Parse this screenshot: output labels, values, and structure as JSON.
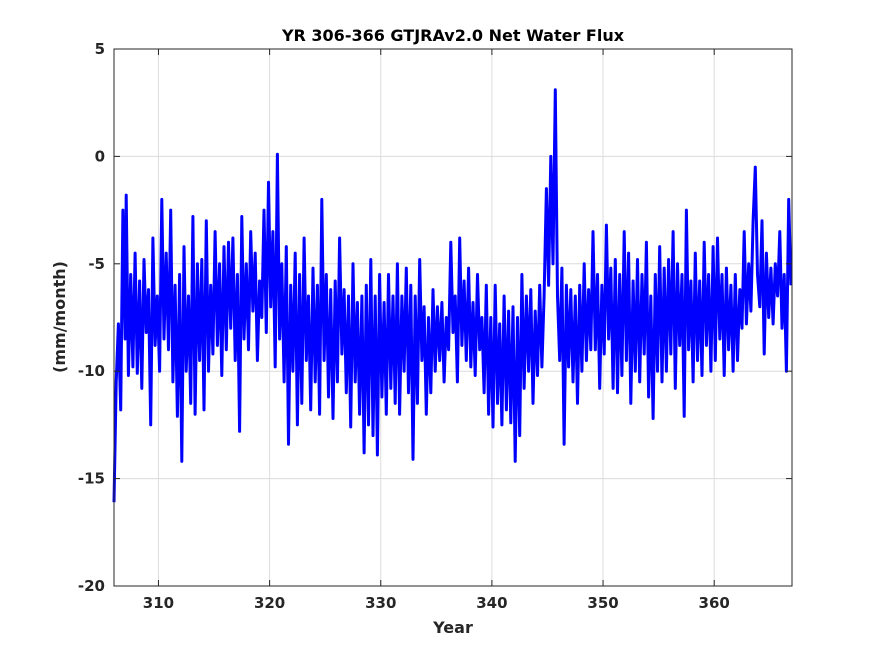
{
  "chart_data": {
    "type": "line",
    "title": "YR 306-366 GTJRAv2.0 Net Water Flux",
    "xlabel": "Year",
    "ylabel": "(mm/month)",
    "xlim": [
      306,
      367
    ],
    "ylim": [
      -20,
      5
    ],
    "xticks": [
      310,
      320,
      330,
      340,
      350,
      360
    ],
    "xtick_labels": [
      "310",
      "320",
      "330",
      "340",
      "350",
      "360"
    ],
    "yticks": [
      5,
      0,
      -5,
      -10,
      -15,
      -20
    ],
    "ytick_labels": [
      "5",
      "0",
      "-5",
      "-10",
      "-15",
      "-20"
    ],
    "grid": true,
    "line_color": "#0000ff",
    "series": [
      {
        "name": "",
        "points": [
          [
            306.0,
            -16.1
          ],
          [
            306.2,
            -10.5
          ],
          [
            306.4,
            -7.8
          ],
          [
            306.6,
            -11.8
          ],
          [
            306.8,
            -2.5
          ],
          [
            307.0,
            -8.5
          ],
          [
            307.1,
            -1.8
          ],
          [
            307.3,
            -10.2
          ],
          [
            307.5,
            -5.5
          ],
          [
            307.7,
            -9.8
          ],
          [
            307.9,
            -4.5
          ],
          [
            308.1,
            -10.1
          ],
          [
            308.3,
            -5.8
          ],
          [
            308.5,
            -10.8
          ],
          [
            308.7,
            -4.8
          ],
          [
            308.9,
            -8.2
          ],
          [
            309.1,
            -6.2
          ],
          [
            309.3,
            -12.5
          ],
          [
            309.5,
            -3.8
          ],
          [
            309.7,
            -8.8
          ],
          [
            309.9,
            -6.5
          ],
          [
            310.1,
            -10.0
          ],
          [
            310.3,
            -2.0
          ],
          [
            310.5,
            -8.5
          ],
          [
            310.7,
            -4.5
          ],
          [
            310.9,
            -9.0
          ],
          [
            311.1,
            -2.5
          ],
          [
            311.3,
            -10.5
          ],
          [
            311.5,
            -6.0
          ],
          [
            311.7,
            -12.1
          ],
          [
            311.9,
            -5.5
          ],
          [
            312.1,
            -14.2
          ],
          [
            312.3,
            -4.2
          ],
          [
            312.5,
            -10.0
          ],
          [
            312.7,
            -6.5
          ],
          [
            312.9,
            -11.5
          ],
          [
            313.1,
            -2.8
          ],
          [
            313.3,
            -12.0
          ],
          [
            313.5,
            -5.0
          ],
          [
            313.7,
            -9.5
          ],
          [
            313.9,
            -4.8
          ],
          [
            314.1,
            -11.8
          ],
          [
            314.3,
            -3.0
          ],
          [
            314.5,
            -10.0
          ],
          [
            314.7,
            -6.0
          ],
          [
            314.9,
            -9.2
          ],
          [
            315.1,
            -3.5
          ],
          [
            315.3,
            -8.8
          ],
          [
            315.5,
            -5.0
          ],
          [
            315.7,
            -10.2
          ],
          [
            315.9,
            -4.2
          ],
          [
            316.1,
            -9.0
          ],
          [
            316.3,
            -4.0
          ],
          [
            316.5,
            -8.0
          ],
          [
            316.7,
            -3.8
          ],
          [
            316.9,
            -9.5
          ],
          [
            317.1,
            -5.5
          ],
          [
            317.3,
            -12.8
          ],
          [
            317.5,
            -2.8
          ],
          [
            317.7,
            -8.5
          ],
          [
            317.9,
            -5.0
          ],
          [
            318.1,
            -9.0
          ],
          [
            318.3,
            -3.5
          ],
          [
            318.5,
            -7.2
          ],
          [
            318.7,
            -4.5
          ],
          [
            318.9,
            -9.5
          ],
          [
            319.1,
            -5.8
          ],
          [
            319.3,
            -7.5
          ],
          [
            319.5,
            -2.5
          ],
          [
            319.7,
            -8.2
          ],
          [
            319.9,
            -1.2
          ],
          [
            320.1,
            -7.0
          ],
          [
            320.3,
            -3.5
          ],
          [
            320.5,
            -9.8
          ],
          [
            320.7,
            0.1
          ],
          [
            320.9,
            -8.5
          ],
          [
            321.1,
            -5.0
          ],
          [
            321.3,
            -10.5
          ],
          [
            321.5,
            -4.2
          ],
          [
            321.7,
            -13.4
          ],
          [
            321.9,
            -6.0
          ],
          [
            322.1,
            -10.0
          ],
          [
            322.3,
            -4.5
          ],
          [
            322.5,
            -12.5
          ],
          [
            322.7,
            -5.5
          ],
          [
            322.9,
            -11.5
          ],
          [
            323.1,
            -3.8
          ],
          [
            323.3,
            -9.5
          ],
          [
            323.5,
            -6.5
          ],
          [
            323.7,
            -11.8
          ],
          [
            323.9,
            -5.2
          ],
          [
            324.1,
            -10.5
          ],
          [
            324.3,
            -6.0
          ],
          [
            324.5,
            -12.0
          ],
          [
            324.7,
            -2.0
          ],
          [
            324.9,
            -9.5
          ],
          [
            325.1,
            -5.5
          ],
          [
            325.3,
            -11.2
          ],
          [
            325.5,
            -6.2
          ],
          [
            325.7,
            -12.2
          ],
          [
            325.9,
            -5.8
          ],
          [
            326.1,
            -10.5
          ],
          [
            326.3,
            -3.8
          ],
          [
            326.5,
            -9.2
          ],
          [
            326.7,
            -6.2
          ],
          [
            326.9,
            -11.0
          ],
          [
            327.1,
            -6.5
          ],
          [
            327.3,
            -12.6
          ],
          [
            327.5,
            -5.0
          ],
          [
            327.7,
            -10.5
          ],
          [
            327.9,
            -6.8
          ],
          [
            328.1,
            -12.0
          ],
          [
            328.3,
            -6.5
          ],
          [
            328.5,
            -13.8
          ],
          [
            328.7,
            -6.0
          ],
          [
            328.9,
            -12.5
          ],
          [
            329.1,
            -4.8
          ],
          [
            329.3,
            -13.0
          ],
          [
            329.5,
            -6.5
          ],
          [
            329.7,
            -13.9
          ],
          [
            329.9,
            -5.5
          ],
          [
            330.1,
            -11.2
          ],
          [
            330.3,
            -6.8
          ],
          [
            330.5,
            -12.0
          ],
          [
            330.7,
            -5.5
          ],
          [
            330.9,
            -10.8
          ],
          [
            331.1,
            -6.5
          ],
          [
            331.3,
            -11.5
          ],
          [
            331.5,
            -5.0
          ],
          [
            331.7,
            -12.0
          ],
          [
            331.9,
            -6.5
          ],
          [
            332.1,
            -10.0
          ],
          [
            332.3,
            -5.2
          ],
          [
            332.5,
            -11.0
          ],
          [
            332.7,
            -6.0
          ],
          [
            332.9,
            -14.1
          ],
          [
            333.1,
            -6.5
          ],
          [
            333.3,
            -11.5
          ],
          [
            333.5,
            -4.8
          ],
          [
            333.7,
            -9.5
          ],
          [
            333.9,
            -7.0
          ],
          [
            334.1,
            -12.0
          ],
          [
            334.3,
            -7.5
          ],
          [
            334.5,
            -11.0
          ],
          [
            334.7,
            -6.2
          ],
          [
            334.9,
            -10.0
          ],
          [
            335.1,
            -7.0
          ],
          [
            335.3,
            -9.5
          ],
          [
            335.5,
            -6.8
          ],
          [
            335.7,
            -10.5
          ],
          [
            335.9,
            -7.5
          ],
          [
            336.1,
            -9.0
          ],
          [
            336.3,
            -4.0
          ],
          [
            336.5,
            -8.2
          ],
          [
            336.7,
            -6.5
          ],
          [
            336.9,
            -10.5
          ],
          [
            337.1,
            -3.8
          ],
          [
            337.3,
            -8.8
          ],
          [
            337.5,
            -5.8
          ],
          [
            337.7,
            -9.5
          ],
          [
            337.9,
            -5.2
          ],
          [
            338.1,
            -9.8
          ],
          [
            338.3,
            -6.8
          ],
          [
            338.5,
            -10.2
          ],
          [
            338.7,
            -5.5
          ],
          [
            338.9,
            -9.0
          ],
          [
            339.1,
            -7.5
          ],
          [
            339.3,
            -11.0
          ],
          [
            339.5,
            -6.0
          ],
          [
            339.7,
            -12.0
          ],
          [
            339.9,
            -7.5
          ],
          [
            340.1,
            -12.6
          ],
          [
            340.3,
            -6.0
          ],
          [
            340.5,
            -11.5
          ],
          [
            340.7,
            -7.8
          ],
          [
            340.9,
            -12.5
          ],
          [
            341.1,
            -6.5
          ],
          [
            341.3,
            -11.8
          ],
          [
            341.5,
            -7.2
          ],
          [
            341.7,
            -12.4
          ],
          [
            341.9,
            -7.0
          ],
          [
            342.1,
            -14.2
          ],
          [
            342.3,
            -7.5
          ],
          [
            342.5,
            -13.0
          ],
          [
            342.7,
            -5.5
          ],
          [
            342.9,
            -10.8
          ],
          [
            343.1,
            -6.5
          ],
          [
            343.3,
            -10.0
          ],
          [
            343.5,
            -6.2
          ],
          [
            343.7,
            -11.5
          ],
          [
            343.9,
            -7.2
          ],
          [
            344.1,
            -10.2
          ],
          [
            344.3,
            -6.0
          ],
          [
            344.5,
            -9.8
          ],
          [
            344.7,
            -6.5
          ],
          [
            344.9,
            -1.5
          ],
          [
            345.1,
            -6.0
          ],
          [
            345.3,
            0.0
          ],
          [
            345.5,
            -5.0
          ],
          [
            345.7,
            3.1
          ],
          [
            345.9,
            -6.5
          ],
          [
            346.1,
            -9.5
          ],
          [
            346.3,
            -5.2
          ],
          [
            346.5,
            -13.4
          ],
          [
            346.7,
            -6.0
          ],
          [
            346.9,
            -9.8
          ],
          [
            347.1,
            -6.2
          ],
          [
            347.3,
            -10.5
          ],
          [
            347.5,
            -6.5
          ],
          [
            347.7,
            -11.5
          ],
          [
            347.9,
            -6.0
          ],
          [
            348.1,
            -10.0
          ],
          [
            348.3,
            -5.0
          ],
          [
            348.5,
            -9.5
          ],
          [
            348.7,
            -6.2
          ],
          [
            348.9,
            -9.0
          ],
          [
            349.1,
            -3.5
          ],
          [
            349.3,
            -9.0
          ],
          [
            349.5,
            -5.5
          ],
          [
            349.7,
            -10.8
          ],
          [
            349.9,
            -6.0
          ],
          [
            350.1,
            -9.2
          ],
          [
            350.3,
            -3.2
          ],
          [
            350.5,
            -8.5
          ],
          [
            350.7,
            -5.2
          ],
          [
            350.9,
            -10.8
          ],
          [
            351.1,
            -4.8
          ],
          [
            351.3,
            -11.0
          ],
          [
            351.5,
            -5.5
          ],
          [
            351.7,
            -10.2
          ],
          [
            351.9,
            -3.5
          ],
          [
            352.1,
            -9.5
          ],
          [
            352.3,
            -4.5
          ],
          [
            352.5,
            -11.5
          ],
          [
            352.7,
            -5.8
          ],
          [
            352.9,
            -10.0
          ],
          [
            353.1,
            -4.8
          ],
          [
            353.3,
            -10.5
          ],
          [
            353.5,
            -5.5
          ],
          [
            353.7,
            -9.2
          ],
          [
            353.9,
            -4.0
          ],
          [
            354.1,
            -11.2
          ],
          [
            354.3,
            -6.5
          ],
          [
            354.5,
            -12.2
          ],
          [
            354.7,
            -5.5
          ],
          [
            354.9,
            -10.0
          ],
          [
            355.1,
            -4.2
          ],
          [
            355.3,
            -10.5
          ],
          [
            355.5,
            -5.2
          ],
          [
            355.7,
            -10.0
          ],
          [
            355.9,
            -4.8
          ],
          [
            356.1,
            -9.2
          ],
          [
            356.3,
            -3.5
          ],
          [
            356.5,
            -10.8
          ],
          [
            356.7,
            -5.0
          ],
          [
            356.9,
            -8.8
          ],
          [
            357.1,
            -5.5
          ],
          [
            357.3,
            -12.1
          ],
          [
            357.5,
            -2.5
          ],
          [
            357.7,
            -9.0
          ],
          [
            357.9,
            -5.8
          ],
          [
            358.1,
            -10.5
          ],
          [
            358.3,
            -4.5
          ],
          [
            358.5,
            -9.5
          ],
          [
            358.7,
            -5.8
          ],
          [
            358.9,
            -10.2
          ],
          [
            359.1,
            -4.0
          ],
          [
            359.3,
            -8.8
          ],
          [
            359.5,
            -5.5
          ],
          [
            359.7,
            -10.0
          ],
          [
            359.9,
            -4.2
          ],
          [
            360.1,
            -9.5
          ],
          [
            360.3,
            -3.8
          ],
          [
            360.5,
            -8.5
          ],
          [
            360.7,
            -5.5
          ],
          [
            360.9,
            -10.2
          ],
          [
            361.1,
            -5.2
          ],
          [
            361.3,
            -9.0
          ],
          [
            361.5,
            -6.0
          ],
          [
            361.7,
            -10.0
          ],
          [
            361.9,
            -5.5
          ],
          [
            362.1,
            -9.5
          ],
          [
            362.3,
            -6.2
          ],
          [
            362.5,
            -8.0
          ],
          [
            362.7,
            -3.5
          ],
          [
            362.9,
            -7.8
          ],
          [
            363.1,
            -5.0
          ],
          [
            363.3,
            -7.2
          ],
          [
            363.5,
            -3.0
          ],
          [
            363.7,
            -0.5
          ],
          [
            363.9,
            -5.5
          ],
          [
            364.1,
            -7.0
          ],
          [
            364.3,
            -3.0
          ],
          [
            364.5,
            -9.2
          ],
          [
            364.7,
            -4.5
          ],
          [
            364.9,
            -7.5
          ],
          [
            365.1,
            -5.2
          ],
          [
            365.3,
            -7.8
          ],
          [
            365.5,
            -5.0
          ],
          [
            365.7,
            -6.5
          ],
          [
            365.9,
            -3.5
          ],
          [
            366.1,
            -8.0
          ],
          [
            366.3,
            -5.5
          ],
          [
            366.5,
            -10.0
          ],
          [
            366.7,
            -2.0
          ],
          [
            366.9,
            -6.0
          ]
        ]
      }
    ]
  }
}
